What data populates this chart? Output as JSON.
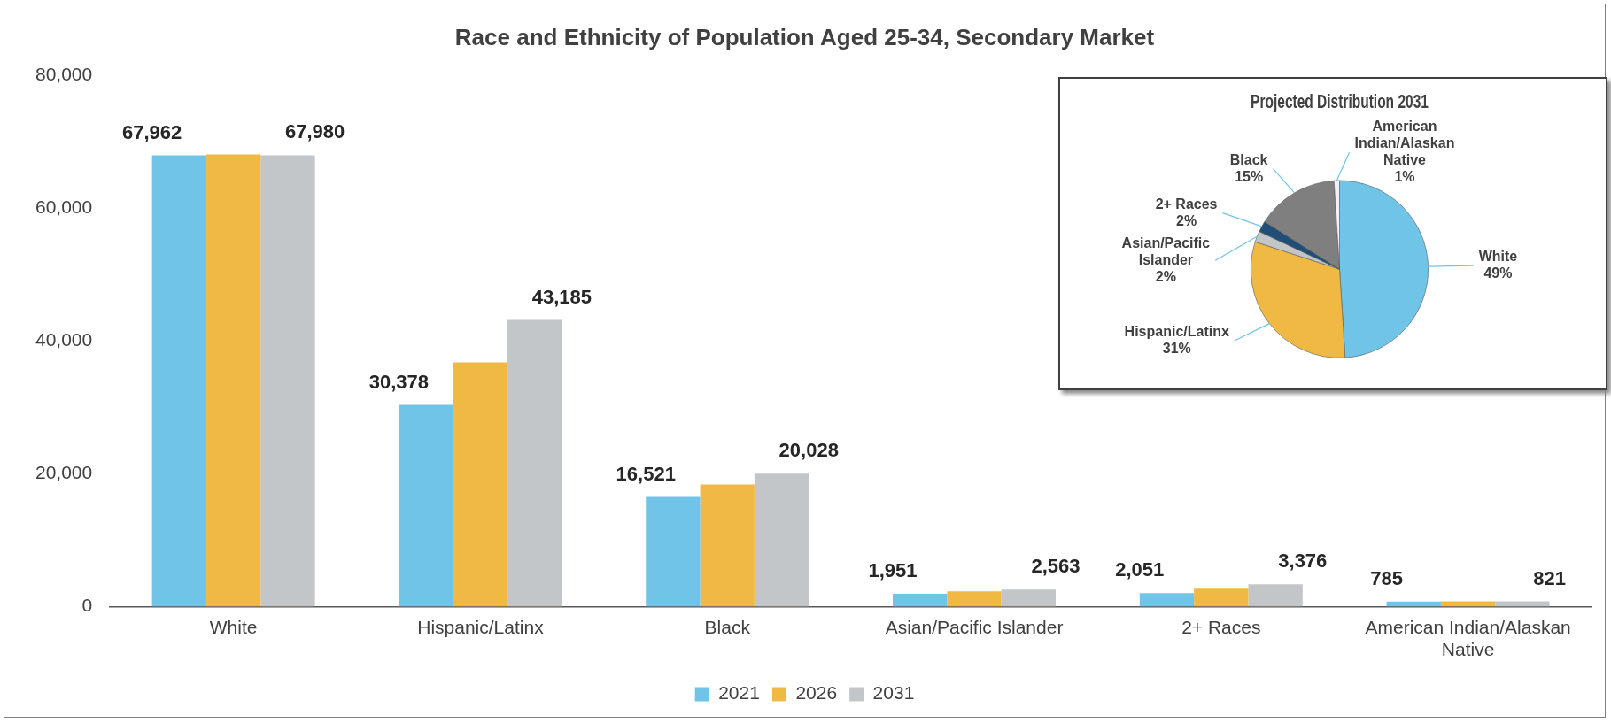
{
  "chart_data": [
    {
      "type": "bar",
      "title": "Race and Ethnicity of Population Aged 25-34, Secondary Market",
      "categories": [
        "White",
        "Hispanic/Latinx",
        "Black",
        "Asian/Pacific Islander",
        "2+ Races",
        "American Indian/Alaskan Native"
      ],
      "series": [
        {
          "name": "2021",
          "color": "#70c4e8",
          "values": [
            67962,
            30378,
            16521,
            1951,
            2051,
            785
          ],
          "value_labels": [
            "67,962",
            "30,378",
            "16,521",
            "1,951",
            "2,051",
            "785"
          ]
        },
        {
          "name": "2026",
          "color": "#f0b944",
          "values": [
            68100,
            36800,
            18400,
            2300,
            2700,
            800
          ]
        },
        {
          "name": "2031",
          "color": "#c3c6c8",
          "values": [
            67980,
            43185,
            20028,
            2563,
            3376,
            821
          ],
          "value_labels": [
            "67,980",
            "43,185",
            "20,028",
            "2,563",
            "3,376",
            "821"
          ]
        }
      ],
      "ylim": [
        0,
        80000
      ],
      "yticks": [
        {
          "value": 0,
          "label": "0"
        },
        {
          "value": 20000,
          "label": "20,000"
        },
        {
          "value": 40000,
          "label": "40,000"
        },
        {
          "value": 60000,
          "label": "60,000"
        },
        {
          "value": 80000,
          "label": "80,000"
        }
      ],
      "grid": false,
      "legend": "bottom"
    },
    {
      "type": "pie",
      "title": "Projected Distribution 2031",
      "categories": [
        "White",
        "Hispanic/Latinx",
        "Asian/Pacific Islander",
        "2+ Races",
        "Black",
        "American Indian/Alaskan Native"
      ],
      "values": [
        49,
        31,
        2,
        2,
        15,
        1
      ],
      "colors": [
        "#70c4e8",
        "#f0b944",
        "#c3c6c8",
        "#1f4e79",
        "#7f7f7f",
        "#f2f2f2"
      ],
      "value_labels": [
        "49%",
        "31%",
        "2%",
        "2%",
        "15%",
        "1%"
      ],
      "legend": false
    }
  ]
}
